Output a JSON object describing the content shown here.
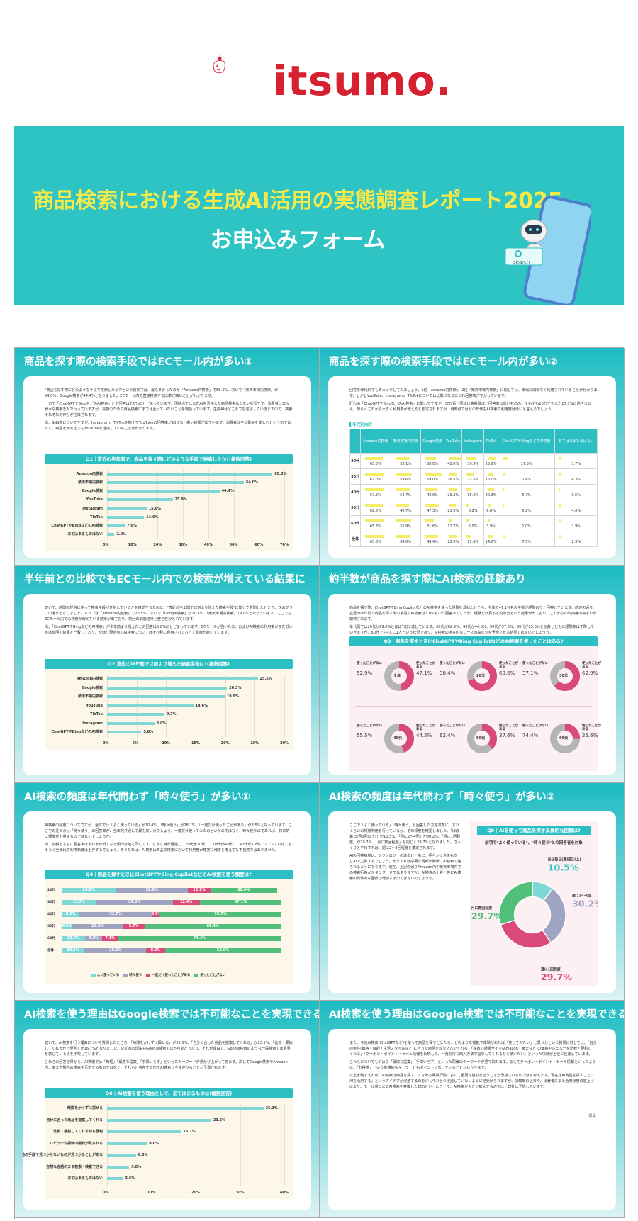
{
  "brand": {
    "logo_text": "itsumo.",
    "accent": "#d62131",
    "teal": "#2ec4c3"
  },
  "hero": {
    "title": "商品検索における生成AI活用の実態調査レポート2025",
    "subtitle": "お申込みフォーム",
    "search_label": "search"
  },
  "panels": {
    "p1": {
      "title": "商品を探す際の検索手段ではECモール内が多い①",
      "text": [
        "\"商品を探す際にどのような手段で検索したか?\"という質問では、最も多かったのが「Amazon内検索」で65.3%、次いで「楽天市場内検索」が54.0%、Google検索が44.4%となりました。ECモール内で直接検索する比率が高いことがわかります。",
        "一方で「ChatGPTやBingなどのAI検索」との回答は7.0%にとどまっています。現時点ではまだAIを活用した商品検索は少ない状況です。消費者は日々様々な検索をAIで行っていますが、買物のための商品検索にまでは至っていないことを物語っています。生成AIはどこまでも進化していきますので、検索それぞれの伸びが注目されます。",
        "尚、SNS系についてですが、Instagram、TikTokを抑えてYouTubeの回答率が25.9%と高い結果が出ています。消費者は主に動画を楽しむというのではなく、商品を知る上でもYouTubeを活用していることがわかります。"
      ],
      "question": "Q1｜直近の半年間で、商品を探す際にどのような手段で検索したか?(複数回答)"
    },
    "p2": {
      "title": "商品を探す際の検索手段ではECモール内が多い②",
      "text": [
        "回答を年代別でもチェックしてみましょう。1位「Amazon内検索」、2位「楽天市場内検索」に関しては、年代に関係なく利用されていることが分かります。しかしYouTube、Instagram、TikTokについては比較になるにつれ回答率が下がっています。",
        "肝心の「ChatGPTやBingなどのAI検索」に関してですが、SNS系と同様に高齢層ほど回答率は低いものの、そもそも20代でもまだ17.3%に過ぎません。恐らくこれから大きく利用率が増えると想定されますが、現時点ではどの年代もAI検索の利用度は低いと言えるでしょう。"
      ],
      "table_title": "▌年代別内訳",
      "headers": [
        "",
        "Amazon内検索",
        "楽天市場内検索",
        "Google検索",
        "YouTube",
        "Instagram",
        "TikTok",
        "ChatGPTやBingなどのAI検索",
        "あてはまるものはない"
      ],
      "rows": [
        [
          "20代",
          "63.0%",
          "53.1%",
          "38.0%",
          "42.0%",
          "30.9%",
          "25.9%",
          "17.3%",
          "3.7%"
        ],
        [
          "30代",
          "67.0%",
          "59.6%",
          "59.0%",
          "26.5%",
          "23.5%",
          "16.0%",
          "7.4%",
          "4.3%"
        ],
        [
          "40代",
          "67.5%",
          "52.7%",
          "42.9%",
          "29.3%",
          "15.6%",
          "20.3%",
          "5.7%",
          "0.5%"
        ],
        [
          "50代",
          "62.5%",
          "48.7%",
          "47.3%",
          "23.9%",
          "6.2%",
          "6.8%",
          "6.2%",
          "4.6%"
        ],
        [
          "60代",
          "65.7%",
          "55.9%",
          "31.6%",
          "12.7%",
          "5.9%",
          "3.9%",
          "1.0%",
          "2.9%"
        ],
        [
          "全体",
          "65.3%",
          "54.0%",
          "44.4%",
          "25.9%",
          "15.6%",
          "14.6%",
          "7.0%",
          "2.9%"
        ]
      ]
    },
    "p3": {
      "title": "半年前との比較でもECモール内での検索が増えている結果に",
      "text": [
        "続いて、時間の経過に伴って検索手段が変化しているかを確認するために、\"直近の半年間で以前より増えた検索手段\"に関して質問したところ、次のグラフの通りとなりました。トップは「Amazon内検索」で25.5%、次いで「Google検索」が20.3%、「楽天市場内検索」19.9%となっています。ここでもECモール内での検索が増えている結果が出ており、前回の調査結果と整合性がとれています。",
        "尚、「ChatGPTやBingなどのAI検索」が半年前より増えたとの回答は5.8%にとどまっています。ECモールが強いため、およびAI検索の利用率がまだ低い点は前回の結果と一致しており、やはり現時点でAI検索についてはそれ程に利用されておらず興味が続いています。"
      ],
      "question": "Q2.直近の半年間で以前より増えた検索手段は?(複数回答)"
    },
    "p4": {
      "title": "約半数が商品を探す際にAI検索の経験あり",
      "text": [
        "商品を探す際、ChatGPTやBing CopilotなどのAI検索を使った経験を尋ねたところ、全体で47.1%もの半数が経験ありと回答しています。前述の通り、直近の半年間で商品を探す際の手段でAI検索は7.0%という回答率でしたが、経験だけ見ると約半分という結果が出ており、これからの利用度の高まりが期待されます。",
        "年代別では20代が69.6%とほぼ7割に達しています。30代が62.9%、40代が44.5%、50代が37.6%、60代が25.6%と加齢とともに経験率は下降していきますが、60代でも4人に1人という状況であり、AI検索の潜在的なニーズの高まりを予想させる結果ではないでしょうか。"
      ],
      "question": "Q3｜商品を探すときにChatGPTやBing CopilotなどのAI検索を使ったことはある?",
      "donuts": [
        {
          "label": "全体",
          "used_label": "使ったことがある",
          "used": "47.1%",
          "unused_label": "使ったことがない",
          "unused": "52.9%"
        },
        {
          "label": "20代",
          "used_label": "使ったことがある",
          "used": "69.6%",
          "unused_label": "使ったことがない",
          "unused": "30.4%"
        },
        {
          "label": "30代",
          "used_label": "使ったことがある",
          "used": "62.9%",
          "unused_label": "使ったことがない",
          "unused": "37.1%"
        },
        {
          "label": "40代",
          "used_label": "使ったことがある",
          "used": "44.5%",
          "unused_label": "使ったことがない",
          "unused": "55.5%"
        },
        {
          "label": "50代",
          "used_label": "使ったことがある",
          "used": "37.6%",
          "unused_label": "使ったことがない",
          "unused": "62.4%"
        },
        {
          "label": "60代",
          "used_label": "使ったことがある",
          "used": "25.6%",
          "unused_label": "使ったことがない",
          "unused": "74.4%"
        }
      ]
    },
    "p5": {
      "title": "AI検索の頻度は年代問わず「時々使う」が多い①",
      "text": [
        "AI検索の頻度についてですが、全体では「よく使っている」が10.4%、「時々使う」が28.1%、「一度だけ使ったことがある」が8.5%となっています。ここでの注目点は「時々使う」の回答率が、全年代共通して最も高い点でしょう。一度だけ使ってみたのというのではなく、時々使うのであれば、将来的に頻度が上昇するのではないでしょうか。",
        "尚、加齢とともに回答率はそれぞれ低くなる傾向は他と同じです。しかし時が経過し、20代が30代に、30代が40代に、40代が50代にシフトすれば、おそらく全年代の利用頻度は上昇するでしょう。そうなれば、AI検索は商品の検索において利用度が確実に増すと考えても不自然ではありません。"
      ],
      "question": "Q4｜商品を探すときにChatGPTやBing CopilotなどのAI検索を使う頻度は?",
      "legend": [
        "よく使っている",
        "時々使う",
        "一度だけ使ったことがある",
        "使ったことがない"
      ],
      "rows": [
        {
          "label": "20代",
          "vals": [
            24.6,
            32.9,
            10.1,
            30.4
          ],
          "texts": [
            "24.6%",
            "32.9%",
            "10.1%",
            "30.4%"
          ]
        },
        {
          "label": "30代",
          "vals": [
            15.7,
            34.8,
            12.4,
            37.1
          ],
          "texts": [
            "15.7%",
            "34.8%",
            "12.4%",
            "37.1%"
          ]
        },
        {
          "label": "40代",
          "vals": [
            8.2,
            32.7,
            3.6,
            55.5
          ],
          "texts": [
            "8.2%",
            "32.7%",
            "3.6%",
            "55.5%"
          ]
        },
        {
          "label": "50代",
          "vals": [
            4.9,
            23.0,
            9.7,
            62.4
          ],
          "texts": [
            "4.9%",
            "23.0%",
            "9.7%",
            "62.4%"
          ]
        },
        {
          "label": "60代",
          "vals": [
            10.7,
            7.8,
            7.1,
            74.4
          ],
          "texts": [
            "10.7%",
            "7.8%",
            "7.1%",
            "74.4%"
          ]
        },
        {
          "label": "全体",
          "vals": [
            10.4,
            28.1,
            8.5,
            52.9
          ],
          "texts": [
            "10.4%",
            "28.1%",
            "8.5%",
            "52.9%"
          ]
        }
      ]
    },
    "p6": {
      "title": "AI検索の頻度は年代問わず「時々使う」が多い②",
      "text": [
        "ここで「よく使っている」「時々使う」と回答した方を対象に、どれくらいの頻度利用を行っているか、その頻度を確認しました。「ほぼ毎日(週5回以上)」が10.5%、「週に2〜4回」が30.2%、「週に1回程度」が29.7%、「月に数回程度」も同じく29.7%となりました。ざっくりと平均すれば、週に2〜3回程度と推定されます。",
        "AIの回答精度は、テクノロジーの進歩とともに、明らかに今後も向上しAIで上昇するでしょう。そうすれば必要な情報が簡単にAI検索で得られるようになります。現在、上記の通りAmazon内や楽天市場内での検索行為がスタンダードではありますが、AI検索の上昇と共にAI検索の具体的な回数は増加するのではないでしょうか。"
      ],
      "question": "Q5｜AIを使って商品を探す具体的な回数は?",
      "subtitle": "前項で\"よく使っている\"、\"時々使う\"との回答者を対象"
    },
    "p7": {
      "title": "AI検索を使う理由はGoogle検索では不可能なことを実現できる点①",
      "text": [
        "続いて、AI検索を行う理由について質問したところ、「時間をかけずに探せる」が35.3%、「自分に合った商品を提案してくれる」が23.5%、「比較・要約してくれるから便利」が16.7%となりました。いずれの理由もGoogle検索では不可能だったり、それが理由で、Google検索のような一般検索では限界を感じている点を示唆しています。",
        "これらの回答結果から、AI検索では「時短」「最適な提案」「手間いらず」といったキーワードが浮かび上がってきます。決してGoogle検索やAmazon内、楽天市場内の検索を否定するものではなく、それらと共存する形でAI検索が今後伸びることが予測されます。"
      ],
      "question": "Q6｜AI検索を使う理由として、あてはまるものは(複数回答)"
    },
    "p8": {
      "title": "AI検索を使う理由はGoogle検索では不可能なことを実現できる点②",
      "text": [
        "また、今後AI検索(ChatGPTなど)を使って商品を探すとしたら、どのような機能や体験があれば「使ってみたい」と思うかという質問に対しては、「自分の条件(価格・目的・生活スタイルなど)に合った商品を絞り込んでくれる」「複数の通販サイト(Amazon・楽天など)の価格やレビューを比較・要約してくれる」「クーポン・ポイント・セール情報を反映して、一番お得な購入方法で提示してくれるなら使いたい」といった項目が上位に位置しています。",
        "これらについてもやはり「最適な提案」「手間いらず」といった同様のキーワードが見て取れます。加えてクーポン・ポイント・セール情報といったように、「お得感」という金銭的なキーワードもポイントになっていることがわかります。",
        "以上を踏まえれば、AI検索は商品を探す、すなわち購買行動において重要な役割を担うことが予想されるのではと考えます。現在はAI商品を探すことにAIを活用する」というアイデアが浸透するのを少し今ひとつ浸透していないように見受けられますが、認知度の上昇や、消費者による活用頻度の底上げにより、モール側によるAI検索を意識した対応といったことで、AI検索が大きく拡大するのではと弊社は予想しています。"
      ],
      "end": "以上"
    }
  },
  "chart_data": [
    {
      "type": "bar",
      "title": "Q1｜直近の半年間で、商品を探す際にどのような手段で検索したか?(複数回答)",
      "categories": [
        "Amazon内検索",
        "楽天市場内検索",
        "Google検索",
        "YouTube",
        "Instagram",
        "TikTok",
        "ChatGPTやBingなどのAI検索",
        "あてはまるものはない"
      ],
      "values": [
        65.3,
        54.0,
        44.4,
        25.9,
        15.6,
        14.6,
        7.0,
        2.9
      ],
      "labels": [
        "65.3%",
        "54.0%",
        "44.4%",
        "25.9%",
        "15.6%",
        "14.6%",
        "7.0%",
        "2.9%"
      ],
      "xticks": [
        "0%",
        "10%",
        "20%",
        "30%",
        "40%",
        "50%",
        "60%",
        "70%"
      ],
      "xlim": [
        0,
        70
      ]
    },
    {
      "type": "bar",
      "title": "Q2.直近の半年間で以前より増えた検索手段は?(複数回答)",
      "categories": [
        "Amazon内検索",
        "Google検索",
        "楽天市場内検索",
        "YouTube",
        "TikTok",
        "Instagram",
        "ChatGPTやBingなどのAI検索"
      ],
      "values": [
        25.5,
        20.3,
        19.9,
        14.6,
        9.7,
        8.0,
        5.8
      ],
      "labels": [
        "25.5%",
        "20.3%",
        "19.9%",
        "14.6%",
        "9.7%",
        "8.0%",
        "5.8%"
      ],
      "xticks": [
        "0%",
        "5%",
        "10%",
        "15%",
        "20%",
        "25%",
        "30%"
      ],
      "xlim": [
        0,
        30
      ]
    },
    {
      "type": "pie",
      "title": "Q5｜AIを使って商品を探す具体的な回数は?",
      "categories": [
        "ほぼ毎日(週5回以上)",
        "週に2〜4回",
        "週に1回程度",
        "月に数回程度"
      ],
      "values": [
        10.5,
        30.2,
        29.7,
        29.7
      ],
      "labels": [
        "10.5%",
        "30.2%",
        "29.7%",
        "29.7%"
      ],
      "colors": [
        "#7dd8d7",
        "#9ea4c1",
        "#d9497a",
        "#4fbf7a"
      ]
    },
    {
      "type": "bar",
      "title": "Q6｜AI検索を使う理由として、あてはまるものは(複数回答)",
      "categories": [
        "時間をかけずに探せる",
        "自分に合った商品を提案してくれる",
        "比較・要約してくれるから便利",
        "レビューや評価の要約が見られる",
        "他の手段で見つからないものが見つかることがある",
        "自然な言語のまま検索・検索できる",
        "あてはまるものはない"
      ],
      "values": [
        35.3,
        23.5,
        16.7,
        9.0,
        6.5,
        5.0,
        3.6
      ],
      "labels": [
        "35.3%",
        "23.5%",
        "16.7%",
        "9.0%",
        "6.5%",
        "5.0%",
        "3.6%"
      ],
      "xticks": [
        "0%",
        "10%",
        "20%",
        "30%",
        "40%"
      ],
      "xlim": [
        0,
        40
      ]
    }
  ]
}
